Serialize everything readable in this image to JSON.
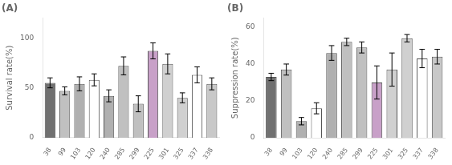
{
  "chart_data": [
    {
      "type": "bar",
      "title": "(A)",
      "categories": [
        "38",
        "99",
        "103",
        "120",
        "240",
        "285",
        "299",
        "225",
        "301",
        "325",
        "337",
        "338"
      ],
      "values": [
        55,
        47,
        54,
        58,
        42,
        72,
        34,
        87,
        74,
        40,
        63,
        54
      ],
      "errors": [
        5,
        4,
        7,
        6,
        6,
        9,
        8,
        8,
        10,
        5,
        8,
        6
      ],
      "y_label": "Survival rate(%)",
      "ylim": [
        0,
        120
      ],
      "yticks": [
        0,
        50,
        100
      ],
      "colors": [
        "#707070",
        "#c0c0c0",
        "#b0b0b0",
        "#ffffff",
        "#b0b0b0",
        "#c0c0c0",
        "#c0c0c0",
        "#c8a0c8",
        "#d0d0d0",
        "#d0d0d0",
        "#ffffff",
        "#c8c8c8"
      ],
      "grid": false
    },
    {
      "type": "bar",
      "title": "(B)",
      "categories": [
        "38",
        "99",
        "103",
        "120",
        "240",
        "285",
        "299",
        "225",
        "301",
        "325",
        "337",
        "338"
      ],
      "values": [
        33,
        37,
        9,
        16,
        46,
        52,
        49,
        30,
        37,
        54,
        43,
        44
      ],
      "errors": [
        2,
        3,
        2,
        3,
        4,
        2,
        3,
        9,
        9,
        2,
        5,
        4
      ],
      "y_label": "Suppression rate(%)",
      "ylim": [
        0,
        65
      ],
      "yticks": [
        0,
        20,
        40,
        60
      ],
      "colors": [
        "#707070",
        "#c0c0c0",
        "#b0b0b0",
        "#ffffff",
        "#b0b0b0",
        "#c0c0c0",
        "#c0c0c0",
        "#c8a0c8",
        "#d0d0d0",
        "#d0d0d0",
        "#ffffff",
        "#c8c8c8"
      ],
      "grid": false
    }
  ]
}
